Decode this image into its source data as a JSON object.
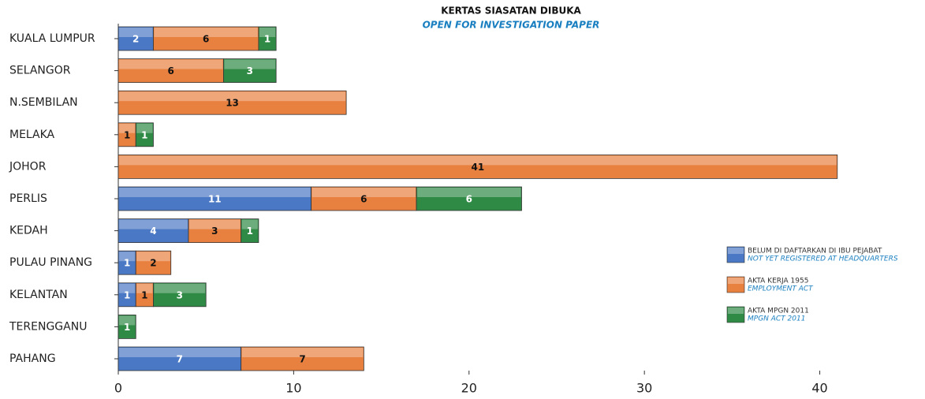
{
  "chart_data": {
    "type": "stacked_barh",
    "title": "KERTAS SIASATAN DIBUKA",
    "subtitle": "OPEN FOR INVESTIGATION PAPER",
    "categories": [
      "KUALA LUMPUR",
      "SELANGOR",
      "N.SEMBILAN",
      "MELAKA",
      "JOHOR",
      "PERLIS",
      "KEDAH",
      "PULAU PINANG",
      "KELANTAN",
      "TERENGGANU",
      "PAHANG"
    ],
    "series": [
      {
        "name": "BELUM DI DAFTARKAN DI IBU PEJABAT",
        "name_en": "NOT YET REGISTERED AT HEADQUARTERS",
        "color": "#4a78c4",
        "label_color": "#ffffff",
        "values": [
          2,
          null,
          null,
          null,
          null,
          11,
          4,
          1,
          1,
          null,
          7
        ]
      },
      {
        "name": "AKTA KERJA 1955",
        "name_en": "EMPLOYMENT ACT",
        "color": "#e8803f",
        "label_color": "#111111",
        "values": [
          6,
          6,
          13,
          1,
          41,
          6,
          3,
          2,
          1,
          null,
          7
        ]
      },
      {
        "name": "AKTA MPGN 2011",
        "name_en": "MPGN ACT 2011",
        "color": "#2f8a45",
        "label_color": "#ffffff",
        "values": [
          1,
          3,
          null,
          1,
          null,
          6,
          1,
          null,
          3,
          1,
          null
        ]
      }
    ],
    "xlim": [
      0,
      46
    ],
    "xticks": [
      0,
      10,
      20,
      30,
      40
    ]
  }
}
